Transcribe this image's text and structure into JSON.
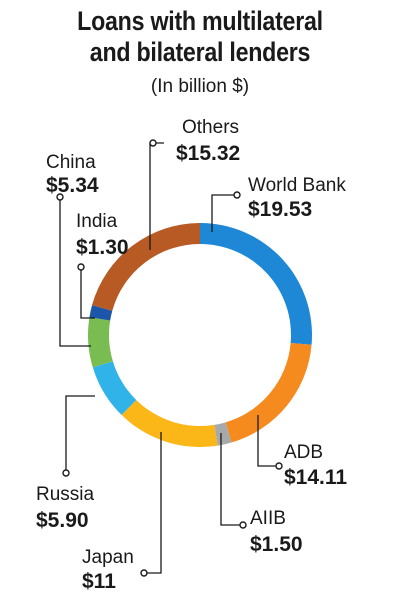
{
  "chart_data": {
    "type": "pie",
    "style": "donut",
    "title_lines": [
      "Loans with multilateral",
      "and bilateral lenders"
    ],
    "subtitle": "(In billion $)",
    "slices": [
      {
        "name": "World Bank",
        "value": 19.53,
        "display": "$19.53",
        "color": "#1e88d6"
      },
      {
        "name": "ADB",
        "value": 14.11,
        "display": "$14.11",
        "color": "#f58a1f"
      },
      {
        "name": "AIIB",
        "value": 1.5,
        "display": "$1.50",
        "color": "#a7a9ac"
      },
      {
        "name": "Japan",
        "value": 11,
        "display": "$11",
        "color": "#fbb617"
      },
      {
        "name": "Russia",
        "value": 5.9,
        "display": "$5.90",
        "color": "#2fb3e8"
      },
      {
        "name": "China",
        "value": 5.34,
        "display": "$5.34",
        "color": "#79bd52"
      },
      {
        "name": "India",
        "value": 1.3,
        "display": "$1.30",
        "color": "#1c56a8"
      },
      {
        "name": "Others",
        "value": 15.32,
        "display": "$15.32",
        "color": "#b75a24"
      }
    ]
  }
}
